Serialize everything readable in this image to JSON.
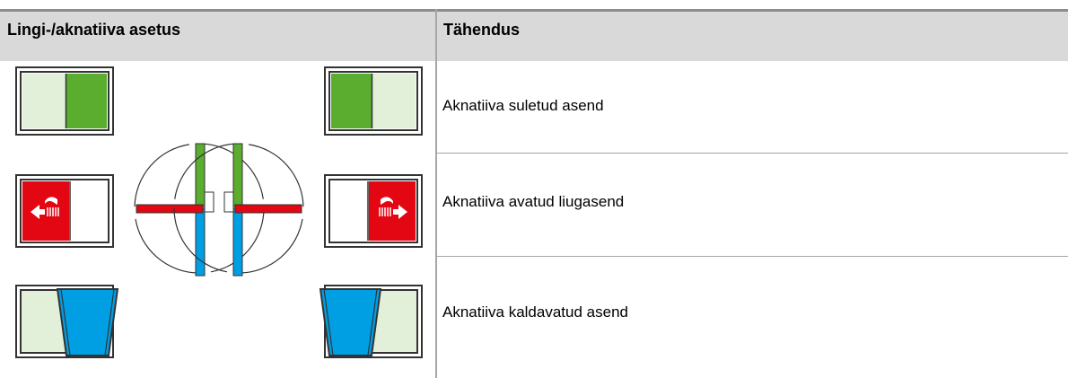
{
  "table": {
    "header": [
      "Lingi-/aknatiiva asetus",
      "Tähendus"
    ],
    "rows": [
      "Aknatiiva suletud asend",
      "Aknatiiva avatud liugasend",
      "Aknatiiva kaldavatud asend"
    ]
  }
}
